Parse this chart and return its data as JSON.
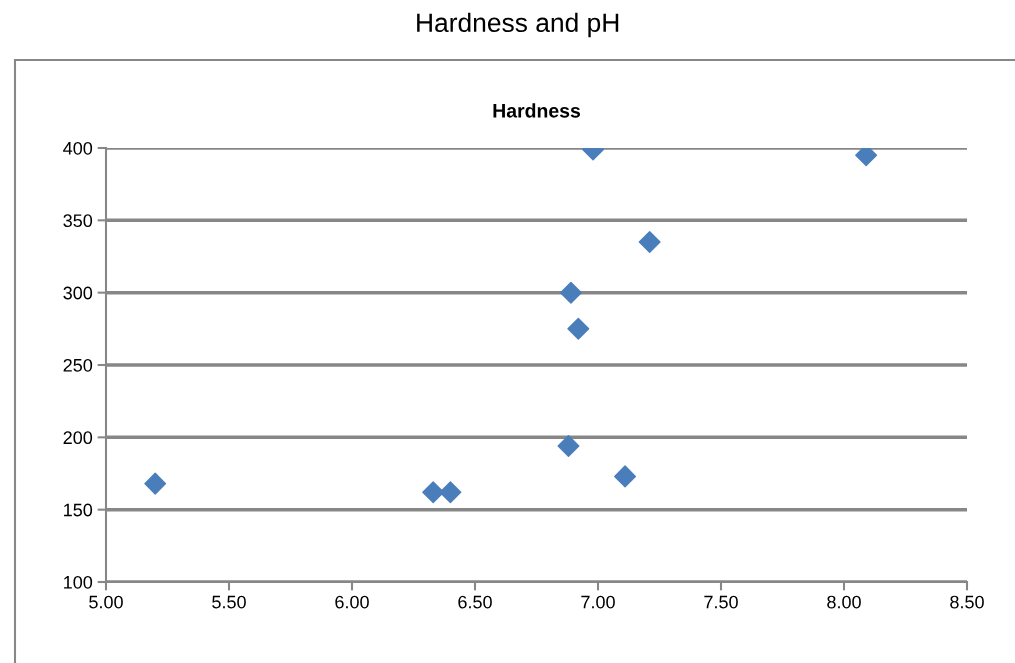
{
  "chart_data": {
    "type": "scatter",
    "title": "Hardness and pH",
    "subtitle": "Hardness",
    "x": [
      5.2,
      6.33,
      6.4,
      6.88,
      6.89,
      6.92,
      6.98,
      7.11,
      7.21,
      8.09
    ],
    "series": [
      {
        "color": "#4a7ebb",
        "values": [
          168,
          162,
          162,
          194,
          300,
          275,
          399,
          173,
          335,
          395
        ]
      }
    ],
    "xlim": [
      5.0,
      8.5
    ],
    "xticks": [
      {
        "value": 5.0,
        "label": "5.00"
      },
      {
        "value": 5.5,
        "label": "5.50"
      },
      {
        "value": 6.0,
        "label": "6.00"
      },
      {
        "value": 6.5,
        "label": "6.50"
      },
      {
        "value": 7.0,
        "label": "7.00"
      },
      {
        "value": 7.5,
        "label": "7.50"
      },
      {
        "value": 8.0,
        "label": "8.00"
      },
      {
        "value": 8.5,
        "label": "8.50"
      }
    ],
    "ylim": [
      100,
      400
    ],
    "yticks": [
      100,
      150,
      200,
      250,
      300,
      350,
      400
    ],
    "grid": "y",
    "legend": false,
    "marker": "diamond"
  }
}
